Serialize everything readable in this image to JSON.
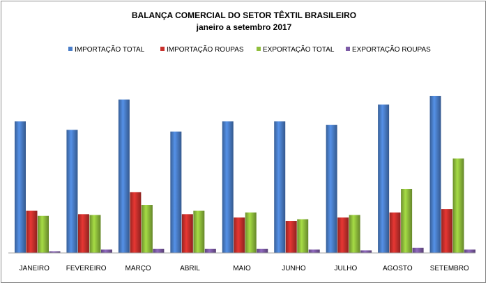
{
  "chart_data": {
    "type": "bar",
    "title": "BALANÇA COMERCIAL DO SETOR TÊXTIL BRASILEIRO",
    "subtitle": "janeiro a setembro 2017",
    "xlabel": "",
    "ylabel": "",
    "ylim": [
      0,
      100
    ],
    "grid": false,
    "legend_position": "top",
    "categories": [
      "JANEIRO",
      "FEVEREIRO",
      "MARÇO",
      "ABRIL",
      "MAIO",
      "JUNHO",
      "JULHO",
      "AGOSTO",
      "SETEMBRO"
    ],
    "series": [
      {
        "name": "IMPORTAÇÃO TOTAL",
        "color": "#4a7ec9",
        "values": [
          78,
          73,
          91,
          72,
          78,
          78,
          76,
          88,
          93
        ]
      },
      {
        "name": "IMPORTAÇÃO ROUPAS",
        "color": "#c9302c",
        "values": [
          25,
          23,
          36,
          23,
          21,
          19,
          21,
          24,
          26
        ]
      },
      {
        "name": "EXPORTAÇÃO TOTAL",
        "color": "#90bf3c",
        "values": [
          22,
          22.5,
          28.5,
          25,
          24,
          20,
          22.5,
          38,
          56
        ]
      },
      {
        "name": "EXPORTAÇÃO ROUPAS",
        "color": "#7d5ba6",
        "values": [
          1,
          2,
          2.5,
          2.5,
          2.5,
          2,
          1.5,
          3,
          2
        ]
      }
    ]
  }
}
